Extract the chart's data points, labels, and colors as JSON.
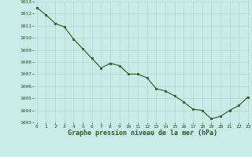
{
  "x": [
    0,
    1,
    2,
    3,
    4,
    5,
    6,
    7,
    8,
    9,
    10,
    11,
    12,
    13,
    14,
    15,
    16,
    17,
    18,
    19,
    20,
    21,
    22,
    23
  ],
  "y": [
    1012.5,
    1011.9,
    1011.2,
    1010.9,
    1009.9,
    1009.1,
    1008.3,
    1007.5,
    1007.9,
    1007.7,
    1007.0,
    1007.0,
    1006.7,
    1005.8,
    1005.6,
    1005.2,
    1004.7,
    1004.1,
    1004.0,
    1003.3,
    1003.5,
    1004.0,
    1004.4,
    1005.1
  ],
  "line_color": "#2d5a1b",
  "marker_color": "#2d5a1b",
  "bg_color": "#c8ece8",
  "grid_color": "#b0d8d0",
  "xlabel": "Graphe pression niveau de la mer (hPa)",
  "xlabel_color": "#2d5a1b",
  "tick_color": "#2d5a1b",
  "ylim_min": 1003,
  "ylim_max": 1013,
  "xlim_min": 0,
  "xlim_max": 23
}
